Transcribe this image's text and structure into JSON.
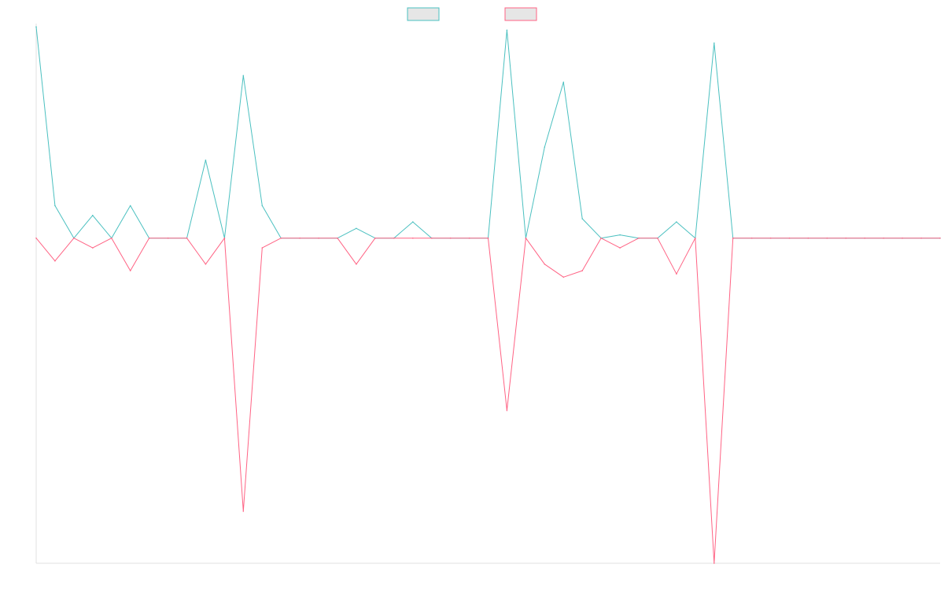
{
  "chart_data": {
    "type": "line",
    "title": "",
    "xlabel": "",
    "ylabel": "",
    "ylim": [
      -1.0,
      0.66
    ],
    "grid": false,
    "legend_position": "top-center",
    "x": [
      0,
      5,
      10,
      15,
      20,
      25,
      30,
      35,
      40,
      45,
      50,
      55,
      60,
      65,
      70,
      75,
      80,
      85,
      90,
      95,
      100,
      105,
      110,
      115,
      120,
      125,
      130,
      135,
      140,
      145,
      150,
      155,
      160,
      165,
      170,
      175,
      180,
      185,
      190,
      195,
      200,
      205,
      210,
      215,
      220,
      225,
      230,
      235,
      240
    ],
    "series": [
      {
        "name": "",
        "color": "#4bc0c0",
        "values": [
          0.65,
          0.1,
          0.0,
          0.07,
          0.0,
          0.1,
          0.0,
          0.0,
          0.0,
          0.24,
          0.0,
          0.5,
          0.1,
          0.0,
          0.0,
          0.0,
          0.0,
          0.03,
          0.0,
          0.0,
          0.05,
          0.0,
          0.0,
          0.0,
          0.0,
          0.64,
          0.0,
          0.28,
          0.48,
          0.06,
          0.0,
          0.01,
          0.0,
          0.0,
          0.05,
          0.0,
          0.6,
          0.0,
          0.0,
          0.0,
          0.0,
          0.0,
          0.0,
          0.0,
          0.0,
          0.0,
          0.0,
          0.0,
          0.0
        ]
      },
      {
        "name": "",
        "color": "#ff6384",
        "values": [
          0.0,
          -0.07,
          0.0,
          -0.03,
          0.0,
          -0.1,
          0.0,
          0.0,
          0.0,
          -0.08,
          0.0,
          -0.84,
          -0.03,
          0.0,
          0.0,
          0.0,
          0.0,
          -0.08,
          0.0,
          0.0,
          0.0,
          0.0,
          0.0,
          0.0,
          0.0,
          -0.53,
          0.0,
          -0.08,
          -0.12,
          -0.1,
          0.0,
          -0.03,
          0.0,
          0.0,
          -0.11,
          0.0,
          -1.0,
          0.0,
          0.0,
          0.0,
          0.0,
          0.0,
          0.0,
          0.0,
          0.0,
          0.0,
          0.0,
          0.0,
          0.0
        ]
      }
    ]
  }
}
